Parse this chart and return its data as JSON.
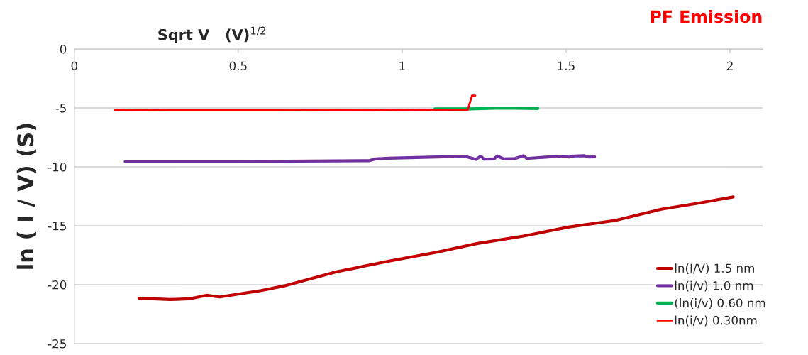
{
  "chart_data": {
    "type": "line",
    "title": "PF Emission",
    "xlabel": "Sqrt V   (V)$^{1/2}$",
    "ylabel": "ln ( I / V) (S)",
    "xlim": [
      0,
      2.1
    ],
    "xticks": [
      0,
      0.5,
      1,
      1.5,
      2
    ],
    "ylim": [
      -25,
      0
    ],
    "yticks": [
      0,
      -5,
      -10,
      -15,
      -20,
      -25
    ],
    "grid": "y",
    "legend": "lower right",
    "marker": "none",
    "line_style": "solid",
    "series": [
      {
        "name": "ln(I/V) 1.5 nm",
        "color": "#c00000",
        "x": [
          0.198,
          0.293,
          0.35,
          0.403,
          0.444,
          0.5,
          0.57,
          0.64,
          0.72,
          0.8,
          0.96,
          1.1,
          1.23,
          1.37,
          1.51,
          1.65,
          1.79,
          1.9,
          2.01
        ],
        "values": [
          -21.15,
          -21.26,
          -21.2,
          -20.9,
          -21.04,
          -20.8,
          -20.5,
          -20.1,
          -19.5,
          -18.9,
          -18.0,
          -17.27,
          -16.5,
          -15.87,
          -15.1,
          -14.55,
          -13.6,
          -13.1,
          -12.55
        ]
      },
      {
        "name": "ln(i/v) 1.0 nm",
        "color": "#7030a0",
        "x": [
          0.155,
          0.5,
          0.9,
          0.92,
          0.96,
          1.19,
          1.225,
          1.24,
          1.25,
          1.28,
          1.29,
          1.31,
          1.345,
          1.37,
          1.38,
          1.41,
          1.477,
          1.51,
          1.526,
          1.556,
          1.57,
          1.587
        ],
        "values": [
          -9.55,
          -9.55,
          -9.48,
          -9.32,
          -9.27,
          -9.1,
          -9.37,
          -9.1,
          -9.35,
          -9.33,
          -9.08,
          -9.33,
          -9.29,
          -9.06,
          -9.29,
          -9.23,
          -9.1,
          -9.17,
          -9.08,
          -9.06,
          -9.17,
          -9.15
        ]
      },
      {
        "name": "(ln(i/v) 0.60 nm",
        "color": "#00b050",
        "x": [
          1.1,
          1.21,
          1.28,
          1.35,
          1.414
        ],
        "values": [
          -5.08,
          -5.08,
          -5.03,
          -5.03,
          -5.05
        ]
      },
      {
        "name": "ln(i/v) 0.30nm",
        "color": "#ff0000",
        "x": [
          0.122,
          0.3,
          0.6,
          0.9,
          1.0,
          1.2,
          1.213,
          1.223
        ],
        "values": [
          -5.18,
          -5.15,
          -5.15,
          -5.17,
          -5.2,
          -5.17,
          -3.96,
          -3.96
        ]
      }
    ]
  }
}
